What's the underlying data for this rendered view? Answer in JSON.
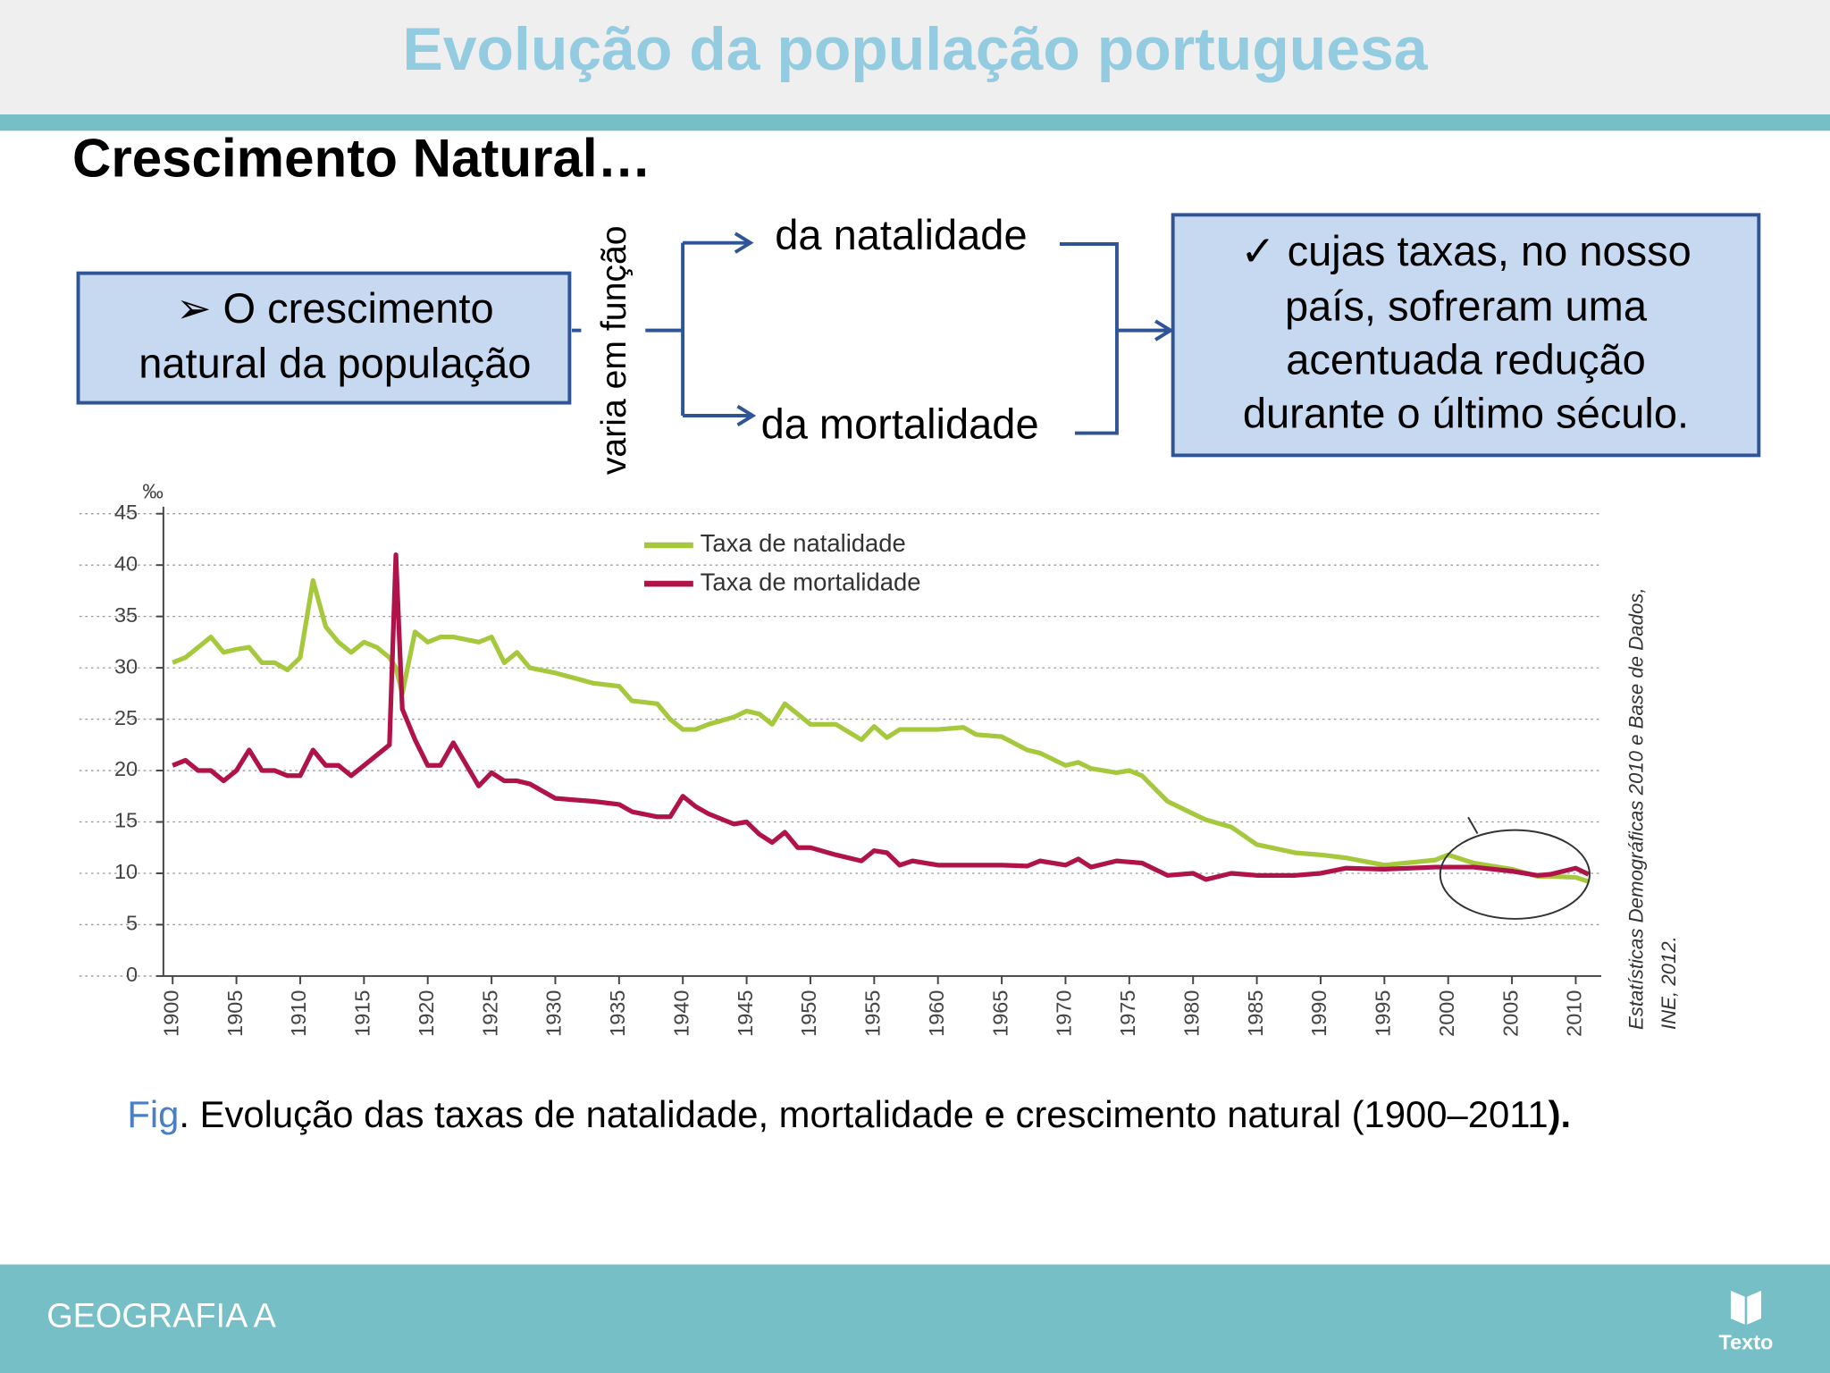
{
  "header": {
    "title": "Evolução da população portuguesa",
    "subtitle": "Crescimento Natural…"
  },
  "diagram": {
    "source_box": [
      "➢ O crescimento",
      "natural da população"
    ],
    "connector": "varia em função",
    "branches": [
      "da natalidade",
      "da mortalidade"
    ],
    "result_box": [
      "✓ cujas taxas, no nosso",
      "país, sofreram uma",
      "acentuada redução",
      "durante o último século."
    ]
  },
  "chart_data": {
    "type": "line",
    "y_unit": "‰",
    "x": [
      1900,
      1901,
      1902,
      1903,
      1904,
      1905,
      1906,
      1907,
      1908,
      1909,
      1910,
      1911,
      1912,
      1913,
      1914,
      1915,
      1916,
      1917,
      1917.5,
      1918,
      1919,
      1920,
      1921,
      1922,
      1924,
      1925,
      1926,
      1927,
      1928,
      1930,
      1933,
      1935,
      1936,
      1938,
      1939,
      1940,
      1941,
      1942,
      1944,
      1945,
      1946,
      1947,
      1948,
      1949,
      1950,
      1952,
      1954,
      1955,
      1956,
      1957,
      1958,
      1960,
      1962,
      1963,
      1965,
      1967,
      1968,
      1970,
      1971,
      1972,
      1974,
      1975,
      1976,
      1978,
      1980,
      1981,
      1983,
      1985,
      1988,
      1990,
      1992,
      1995,
      1999,
      2000,
      2002,
      2005,
      2007,
      2008,
      2010,
      2011
    ],
    "series": [
      {
        "name": "Taxa de natalidade",
        "color": "#a6c83c",
        "values": [
          30.5,
          31,
          32,
          33,
          31.5,
          31.8,
          32,
          30.5,
          30.5,
          29.8,
          31,
          38.5,
          34,
          32.5,
          31.5,
          32.5,
          32,
          31,
          30,
          27.5,
          33.5,
          32.5,
          33,
          33,
          32.5,
          33,
          30.5,
          31.5,
          30,
          29.5,
          28.5,
          28.2,
          26.8,
          26.5,
          25,
          24,
          24,
          24.5,
          25.2,
          25.8,
          25.5,
          24.5,
          26.5,
          25.5,
          24.5,
          24.5,
          23,
          24.3,
          23.2,
          24,
          24,
          24,
          24.2,
          23.5,
          23.3,
          22,
          21.7,
          20.5,
          20.8,
          20.2,
          19.8,
          20,
          19.5,
          17,
          15.8,
          15.2,
          14.5,
          12.8,
          12,
          11.8,
          11.5,
          10.8,
          11.3,
          11.8,
          11,
          10.4,
          9.7,
          9.7,
          9.6,
          9.2
        ]
      },
      {
        "name": "Taxa de mortalidade",
        "color": "#b0124a",
        "values": [
          20.5,
          21,
          20,
          20,
          19,
          20,
          22,
          20,
          20,
          19.5,
          19.5,
          22,
          20.5,
          20.5,
          19.5,
          20.5,
          21.5,
          22.5,
          41,
          26,
          23,
          20.5,
          20.5,
          22.7,
          18.5,
          19.8,
          19,
          19,
          18.7,
          17.3,
          17,
          16.7,
          16,
          15.5,
          15.5,
          17.5,
          16.5,
          15.8,
          14.8,
          15,
          13.8,
          13,
          14,
          12.5,
          12.5,
          11.8,
          11.2,
          12.2,
          12,
          10.8,
          11.2,
          10.8,
          10.8,
          10.8,
          10.8,
          10.7,
          11.2,
          10.8,
          11.4,
          10.6,
          11.2,
          11.1,
          11,
          9.8,
          10,
          9.4,
          10,
          9.8,
          9.8,
          10,
          10.5,
          10.4,
          10.6,
          10.6,
          10.6,
          10.2,
          9.8,
          9.9,
          10.5,
          9.9
        ]
      }
    ],
    "xlim": [
      1899,
      2012
    ],
    "xticks": [
      1900,
      1905,
      1910,
      1915,
      1920,
      1925,
      1930,
      1935,
      1940,
      1945,
      1950,
      1955,
      1960,
      1965,
      1970,
      1975,
      1980,
      1985,
      1990,
      1995,
      2000,
      2005,
      2010
    ],
    "ylim": [
      0,
      45
    ],
    "yticks": [
      0,
      5,
      10,
      15,
      20,
      25,
      30,
      35,
      40,
      45
    ],
    "grid": true,
    "legend": "top",
    "source": [
      "Estatísticas Demográficas 2010 e Base de Dados,",
      "INE, 2012."
    ]
  },
  "caption": {
    "label": "Fig",
    "text": ". Evolução das taxas de natalidade, mortalidade e crescimento natural (1900–2011",
    "end": ")."
  },
  "footer": {
    "course": "GEOGRAFIA A",
    "brand": "Texto"
  }
}
